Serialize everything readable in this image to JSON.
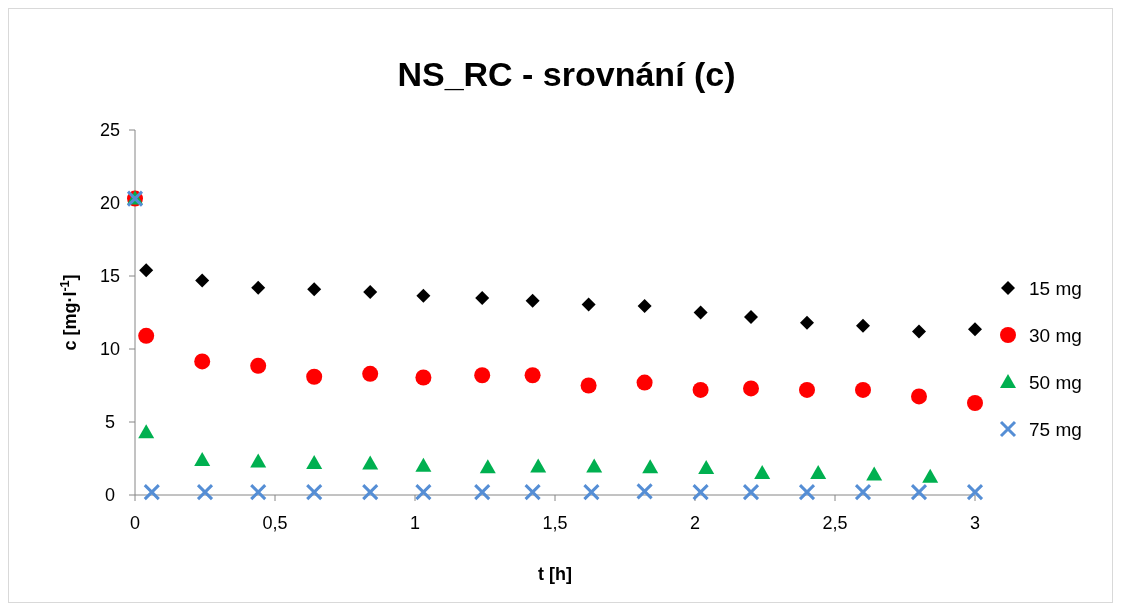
{
  "chart_data": {
    "type": "scatter",
    "title": "NS_RC - srovnání (c)",
    "xlabel": "t [h]",
    "ylabel": "c [mg·l$^{-1}$]",
    "xlim": [
      0,
      3
    ],
    "xticks": [
      0,
      {
        "value": 0.5,
        "label": "0,5"
      },
      1,
      {
        "value": 1.5,
        "label": "1,5"
      },
      2,
      {
        "value": 2.5,
        "label": "2,5"
      },
      3
    ],
    "ylim": [
      0,
      25
    ],
    "yticks": [
      0,
      5,
      10,
      15,
      20,
      25
    ],
    "grid": false,
    "legend": "right",
    "series": [
      {
        "name": "15 mg",
        "color": "#000000",
        "marker": "diamond",
        "x": [
          0.04,
          0.24,
          0.44,
          0.64,
          0.84,
          1.03,
          1.24,
          1.42,
          1.62,
          1.82,
          2.02,
          2.2,
          2.4,
          2.6,
          2.8,
          3.0
        ],
        "values": [
          15.4,
          14.7,
          14.2,
          14.1,
          13.9,
          13.65,
          13.5,
          13.3,
          13.05,
          12.95,
          12.5,
          12.2,
          11.8,
          11.6,
          11.2,
          11.35
        ]
      },
      {
        "name": "30 mg",
        "color": "#ff0000",
        "marker": "circle",
        "x": [
          0,
          0.04,
          0.24,
          0.44,
          0.64,
          0.84,
          1.03,
          1.24,
          1.42,
          1.62,
          1.82,
          2.02,
          2.2,
          2.4,
          2.6,
          2.8,
          3.0
        ],
        "values": [
          20.3,
          10.9,
          9.15,
          8.85,
          8.1,
          8.3,
          8.05,
          8.2,
          8.2,
          7.5,
          7.7,
          7.2,
          7.3,
          7.2,
          7.2,
          6.75,
          6.3
        ]
      },
      {
        "name": "50 mg",
        "color": "#00b050",
        "marker": "triangle",
        "x": [
          0,
          0.04,
          0.24,
          0.44,
          0.64,
          0.84,
          1.03,
          1.26,
          1.44,
          1.64,
          1.84,
          2.04,
          2.24,
          2.44,
          2.64,
          2.84
        ],
        "values": [
          20.3,
          4.3,
          2.4,
          2.3,
          2.2,
          2.15,
          2.0,
          1.9,
          1.95,
          1.95,
          1.9,
          1.85,
          1.5,
          1.5,
          1.4,
          1.25
        ]
      },
      {
        "name": "75 mg",
        "color": "#558ed5",
        "marker": "cross",
        "x": [
          0,
          0.06,
          0.25,
          0.44,
          0.64,
          0.84,
          1.03,
          1.24,
          1.42,
          1.63,
          1.82,
          2.02,
          2.2,
          2.4,
          2.6,
          2.8,
          3.0
        ],
        "values": [
          20.3,
          0.2,
          0.2,
          0.2,
          0.2,
          0.2,
          0.2,
          0.2,
          0.2,
          0.2,
          0.25,
          0.2,
          0.2,
          0.2,
          0.2,
          0.2,
          0.2
        ]
      }
    ]
  }
}
